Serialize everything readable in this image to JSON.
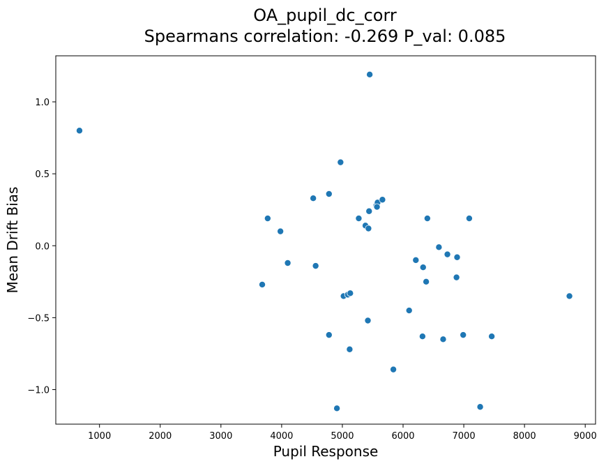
{
  "chart_data": {
    "type": "scatter",
    "title_line1": "OA_pupil_dc_corr",
    "title_line2": "Spearmans correlation: -0.269 P_val: 0.085",
    "xlabel": "Pupil Response",
    "ylabel": "Mean Drift Bias",
    "xlim": [
      280,
      9170
    ],
    "ylim": [
      -1.24,
      1.32
    ],
    "xticks": [
      1000,
      2000,
      3000,
      4000,
      5000,
      6000,
      7000,
      8000,
      9000
    ],
    "xtick_labels": [
      "1000",
      "2000",
      "3000",
      "4000",
      "5000",
      "6000",
      "7000",
      "8000",
      "9000"
    ],
    "yticks": [
      1.0,
      0.5,
      0.0,
      -0.5,
      -1.0
    ],
    "ytick_labels": [
      "1.0",
      "0.5",
      "0.0",
      "−0.5",
      "−1.0"
    ],
    "grid": false,
    "marker_color": "#1f77b4",
    "points": [
      {
        "x": 670,
        "y": 0.8
      },
      {
        "x": 5450,
        "y": 1.19
      },
      {
        "x": 4970,
        "y": 0.58
      },
      {
        "x": 4780,
        "y": 0.36
      },
      {
        "x": 4520,
        "y": 0.33
      },
      {
        "x": 3770,
        "y": 0.19
      },
      {
        "x": 3980,
        "y": 0.1
      },
      {
        "x": 4100,
        "y": -0.12
      },
      {
        "x": 4560,
        "y": -0.14
      },
      {
        "x": 3680,
        "y": -0.27
      },
      {
        "x": 5270,
        "y": 0.19
      },
      {
        "x": 5380,
        "y": 0.14
      },
      {
        "x": 5430,
        "y": 0.12
      },
      {
        "x": 5440,
        "y": 0.24
      },
      {
        "x": 5560,
        "y": 0.28
      },
      {
        "x": 5580,
        "y": 0.3
      },
      {
        "x": 5570,
        "y": 0.27
      },
      {
        "x": 5660,
        "y": 0.32
      },
      {
        "x": 5020,
        "y": -0.35
      },
      {
        "x": 5090,
        "y": -0.34
      },
      {
        "x": 5130,
        "y": -0.33
      },
      {
        "x": 5420,
        "y": -0.52
      },
      {
        "x": 4780,
        "y": -0.62
      },
      {
        "x": 5120,
        "y": -0.72
      },
      {
        "x": 4910,
        "y": -1.13
      },
      {
        "x": 5840,
        "y": -0.86
      },
      {
        "x": 6100,
        "y": -0.45
      },
      {
        "x": 6210,
        "y": -0.1
      },
      {
        "x": 6330,
        "y": -0.15
      },
      {
        "x": 6380,
        "y": -0.25
      },
      {
        "x": 6400,
        "y": 0.19
      },
      {
        "x": 6590,
        "y": -0.01
      },
      {
        "x": 6730,
        "y": -0.06
      },
      {
        "x": 6890,
        "y": -0.08
      },
      {
        "x": 6880,
        "y": -0.22
      },
      {
        "x": 7090,
        "y": 0.19
      },
      {
        "x": 6320,
        "y": -0.63
      },
      {
        "x": 6660,
        "y": -0.65
      },
      {
        "x": 6990,
        "y": -0.62
      },
      {
        "x": 7460,
        "y": -0.63
      },
      {
        "x": 7270,
        "y": -1.12
      },
      {
        "x": 8740,
        "y": -0.35
      }
    ]
  }
}
